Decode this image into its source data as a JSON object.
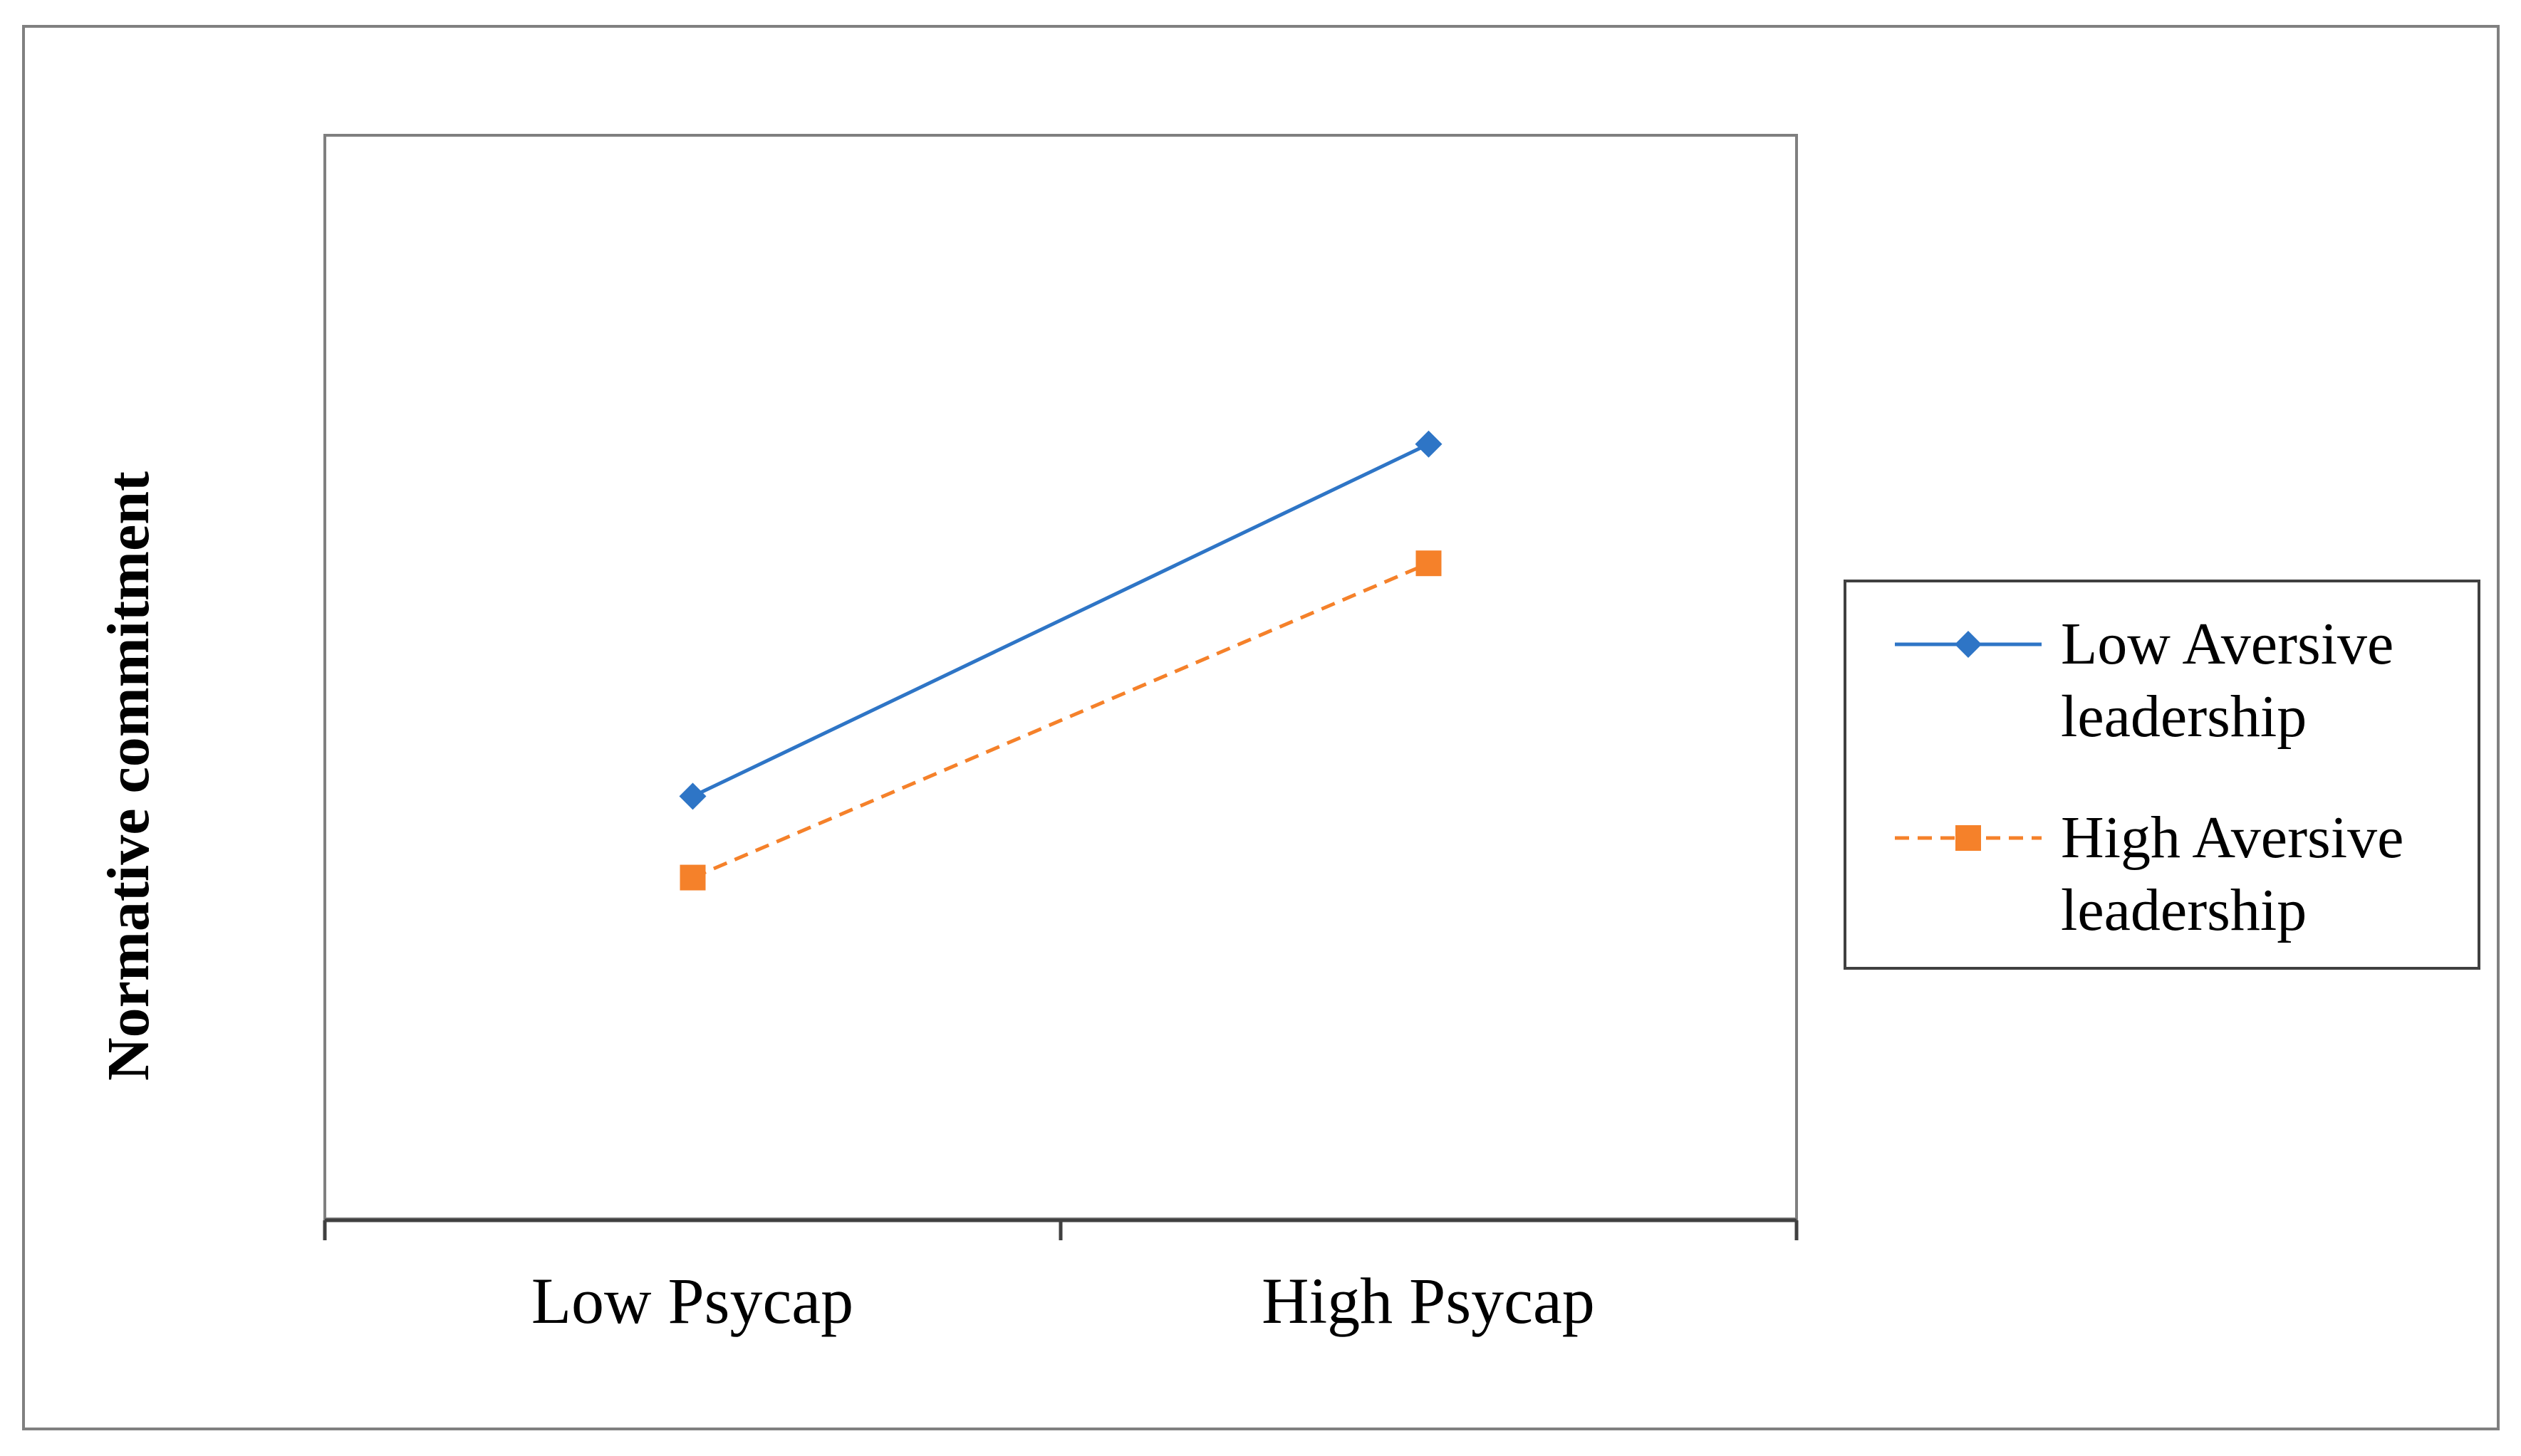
{
  "chart_data": {
    "type": "line",
    "title": "",
    "xlabel": "",
    "ylabel": "Normative commitment",
    "categories": [
      "Low Psycap",
      "High Psycap"
    ],
    "ylim": [
      0,
      10
    ],
    "grid": false,
    "legend_position": "right",
    "series": [
      {
        "name": "Low Aversive leadership",
        "name_lines": [
          "Low Aversive",
          "leadership"
        ],
        "values": [
          3.9,
          7.15
        ],
        "color": "#2e75c6",
        "dash": "solid",
        "marker": "diamond"
      },
      {
        "name": "High Aversive leadership",
        "name_lines": [
          "High Aversive",
          "leadership"
        ],
        "values": [
          3.15,
          6.05
        ],
        "color": "#f5812a",
        "dash": "dashed",
        "marker": "square"
      }
    ]
  },
  "colors": {
    "frame": "#808080",
    "plot_border": "#7f7f7f",
    "axis": "#404040"
  }
}
